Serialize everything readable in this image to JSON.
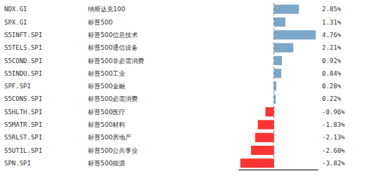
{
  "chart_data": {
    "type": "bar",
    "orientation": "horizontal",
    "categories": [
      "NDX.GI",
      "SPX.GI",
      "S5INFT.SPI",
      "S5TELS.SPI",
      "S5COND.SPI",
      "S5INDU.SPI",
      "SPF.SPI",
      "S5CONS.SPI",
      "S5HLTH.SPI",
      "S5MATR.SPI",
      "S5RLST.SPI",
      "S5UTIL.SPI",
      "SPN.SPI"
    ],
    "annotations": [
      "纳斯达克100",
      "标普500",
      "标普500信息技术",
      "标普500通信设备",
      "标普500非必需消费",
      "标普500工业",
      "标普500金融",
      "标普500必需消费",
      "标普500医疗",
      "标普500材料",
      "标普500房地产",
      "标普500公共事业",
      "标普500能源"
    ],
    "values": [
      2.85,
      1.31,
      4.76,
      2.21,
      0.92,
      0.84,
      0.28,
      0.22,
      -0.96,
      -1.83,
      -2.13,
      -2.6,
      -3.82
    ],
    "value_labels": [
      "2.85%",
      "1.31%",
      "4.76%",
      "2.21%",
      "0.92%",
      "0.84%",
      "0.28%",
      "0.22%",
      "-0.96%",
      "-1.83%",
      "-2.13%",
      "-2.60%",
      "-3.82%"
    ],
    "data_labels": true,
    "colors": [
      "#7BA7C9",
      "#7BA7C9",
      "#7BA7C9",
      "#7BA7C9",
      "#7BA7C9",
      "#7BA7C9",
      "#7BA7C9",
      "#7BA7C9",
      "#FF3333",
      "#FF3333",
      "#FF3333",
      "#FF3333",
      "#FF3333"
    ],
    "xlim": [
      -4.046,
      4.998
    ],
    "tick_labels": false,
    "grid": false
  }
}
